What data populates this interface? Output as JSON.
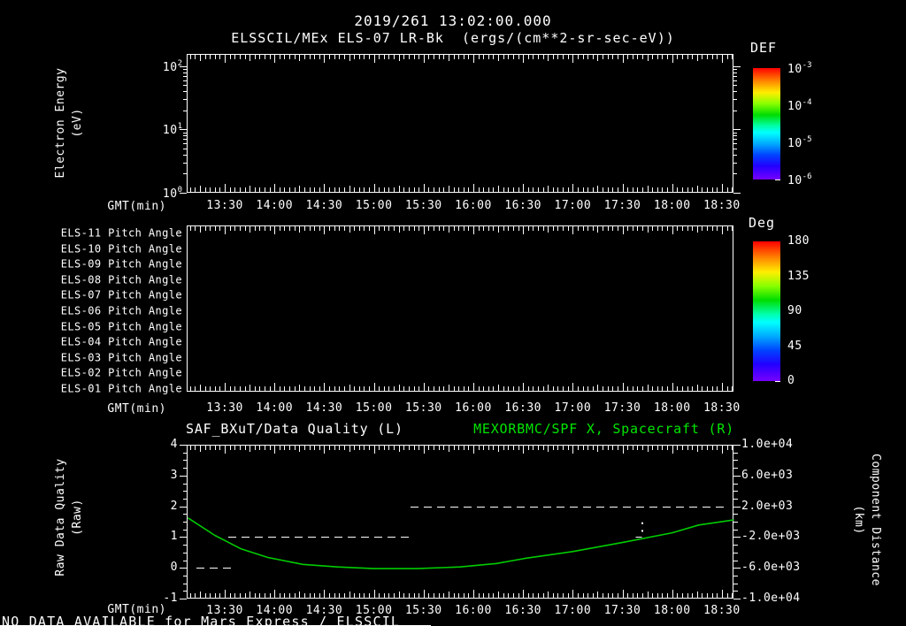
{
  "header": {
    "title": "2019/261 13:02:00.000",
    "subtitle": "ELSSCIL/MEx ELS-07 LR-Bk  (ergs/(cm**2-sr-sec-eV))"
  },
  "colors": {
    "background": "#000000",
    "foreground": "#ffffff",
    "accent_green": "#00e600",
    "curve_green": "#00cc00",
    "colorbar_stops": [
      "#ff0000 0%",
      "#ff8800 12%",
      "#ffee00 22%",
      "#88ff00 32%",
      "#00dd00 42%",
      "#00ffaa 52%",
      "#00ffff 58%",
      "#00aaff 68%",
      "#0044ff 78%",
      "#2200ff 88%",
      "#7700ff 100%"
    ]
  },
  "time_axis": {
    "label": "GMT(min)",
    "start_min": 787,
    "end_min": 1117,
    "minor_step_min": 3,
    "mid_step_min": 15,
    "major_ticks": [
      {
        "m": 810,
        "label": "13:30"
      },
      {
        "m": 840,
        "label": "14:00"
      },
      {
        "m": 870,
        "label": "14:30"
      },
      {
        "m": 900,
        "label": "15:00"
      },
      {
        "m": 930,
        "label": "15:30"
      },
      {
        "m": 960,
        "label": "16:00"
      },
      {
        "m": 990,
        "label": "16:30"
      },
      {
        "m": 1020,
        "label": "17:00"
      },
      {
        "m": 1050,
        "label": "17:30"
      },
      {
        "m": 1080,
        "label": "18:00"
      },
      {
        "m": 1110,
        "label": "18:30"
      }
    ]
  },
  "energy_panel": {
    "ylabel_line1": "Electron Energy",
    "ylabel_line2": "(eV)",
    "yticks": [
      {
        "base": "10",
        "exp": "2",
        "value": 100
      },
      {
        "base": "10",
        "exp": "1",
        "value": 10
      },
      {
        "base": "10",
        "exp": "0",
        "value": 1
      }
    ]
  },
  "def_colorbar": {
    "title": "DEF",
    "labels": [
      {
        "base": "10",
        "exp": "-3"
      },
      {
        "base": "10",
        "exp": "-4"
      },
      {
        "base": "10",
        "exp": "-5"
      },
      {
        "base": "10",
        "exp": "-6"
      }
    ]
  },
  "pitch_panel": {
    "rows": [
      "ELS-11 Pitch Angle",
      "ELS-10 Pitch Angle",
      "ELS-09 Pitch Angle",
      "ELS-08 Pitch Angle",
      "ELS-07 Pitch Angle",
      "ELS-06 Pitch Angle",
      "ELS-05 Pitch Angle",
      "ELS-04 Pitch Angle",
      "ELS-03 Pitch Angle",
      "ELS-02 Pitch Angle",
      "ELS-01 Pitch Angle"
    ]
  },
  "deg_colorbar": {
    "title": "Deg",
    "labels": [
      "180",
      "135",
      "90",
      "45",
      "0"
    ]
  },
  "quality_panel": {
    "title_left": "SAF_BXuT/Data Quality (L)",
    "title_right": "MEXORBMC/SPF X, Spacecraft (R)",
    "ylabel_left_line1": "Raw Data Quality",
    "ylabel_left_line2": "(Raw)",
    "ylabel_right_line1": "Component Distance",
    "ylabel_right_line2": "(km)",
    "yticks_left": [
      {
        "v": 4,
        "label": "4"
      },
      {
        "v": 3,
        "label": "3"
      },
      {
        "v": 2,
        "label": "2"
      },
      {
        "v": 1,
        "label": "1"
      },
      {
        "v": 0,
        "label": "0"
      },
      {
        "v": -1,
        "label": "-1"
      }
    ],
    "yticks_right": [
      {
        "v": 10000,
        "label": "1.0e+04"
      },
      {
        "v": 6000,
        "label": "6.0e+03"
      },
      {
        "v": 2000,
        "label": "2.0e+03"
      },
      {
        "v": -2000,
        "label": "-2.0e+03"
      },
      {
        "v": -6000,
        "label": "-6.0e+03"
      },
      {
        "v": -10000,
        "label": "-1.0e+04"
      }
    ]
  },
  "status_bar": {
    "text": "NO DATA AVAILABLE for Mars Express / ELSSCIL"
  },
  "chart_data": [
    {
      "type": "heatmap",
      "title": "ELSSCIL/MEx ELS-07 LR-Bk (ergs/(cm**2-sr-sec-eV))",
      "xlabel": "GMT(min)",
      "ylabel": "Electron Energy (eV)",
      "yscale": "log",
      "ylim": [
        1,
        155
      ],
      "x_tick_labels": [
        "13:30",
        "14:00",
        "14:30",
        "15:00",
        "15:30",
        "16:00",
        "16:30",
        "17:00",
        "17:30",
        "18:00",
        "18:30"
      ],
      "colorbar": {
        "title": "DEF",
        "scale": "log",
        "range": [
          1e-06,
          0.001
        ],
        "tick_labels": [
          "10^-3",
          "10^-4",
          "10^-5",
          "10^-6"
        ]
      },
      "values": [],
      "note": "empty panel - NO DATA AVAILABLE"
    },
    {
      "type": "heatmap",
      "title": "ELS Pitch Angle panels",
      "xlabel": "GMT(min)",
      "rows": [
        "ELS-11",
        "ELS-10",
        "ELS-09",
        "ELS-08",
        "ELS-07",
        "ELS-06",
        "ELS-05",
        "ELS-04",
        "ELS-03",
        "ELS-02",
        "ELS-01"
      ],
      "x_tick_labels": [
        "13:30",
        "14:00",
        "14:30",
        "15:00",
        "15:30",
        "16:00",
        "16:30",
        "17:00",
        "17:30",
        "18:00",
        "18:30"
      ],
      "colorbar": {
        "title": "Deg",
        "range": [
          0,
          180
        ],
        "ticks": [
          0,
          45,
          90,
          135,
          180
        ]
      },
      "values": [],
      "note": "empty panel - NO DATA AVAILABLE"
    },
    {
      "type": "line",
      "title_left": "SAF_BXuT/Data Quality (L)",
      "title_right": "MEXORBMC/SPF X, Spacecraft (R)",
      "xlabel": "GMT(min)",
      "x_range_minutes": [
        787,
        1117
      ],
      "x_tick_labels": [
        "13:30",
        "14:00",
        "14:30",
        "15:00",
        "15:30",
        "16:00",
        "16:30",
        "17:00",
        "17:30",
        "18:00",
        "18:30"
      ],
      "ylim_left": [
        -1,
        4
      ],
      "ylabel_left": "Raw Data Quality (Raw)",
      "ylim_right": [
        -10000,
        10000
      ],
      "ylabel_right": "Component Distance (km)",
      "series": [
        {
          "name": "SAF_BXuT/Data Quality (L)",
          "axis": "left",
          "style": "dashed",
          "color": "#ffffff",
          "segments": [
            {
              "value": 0,
              "m_start": 793,
              "m_end": 816
            },
            {
              "value": 1,
              "m_start": 812,
              "m_end": 923
            },
            {
              "value": 2,
              "m_start": 922,
              "m_end": 1111
            }
          ]
        },
        {
          "name": "MEXORBMC/SPF X, Spacecraft (R)",
          "axis": "right",
          "style": "solid",
          "color": "#00cc00",
          "points": [
            [
              788,
              450
            ],
            [
              804,
              -1780
            ],
            [
              820,
              -3550
            ],
            [
              836,
              -4660
            ],
            [
              857,
              -5550
            ],
            [
              878,
              -5890
            ],
            [
              900,
              -6100
            ],
            [
              926,
              -6100
            ],
            [
              952,
              -5890
            ],
            [
              974,
              -5440
            ],
            [
              991,
              -4780
            ],
            [
              1020,
              -3890
            ],
            [
              1051,
              -2670
            ],
            [
              1080,
              -1450
            ],
            [
              1096,
              -440
            ],
            [
              1117,
              220
            ]
          ]
        }
      ],
      "stray_marks": [
        {
          "m": 1062,
          "value": 1.45
        },
        {
          "m": 1062,
          "value": 1.2
        },
        {
          "m": 1060,
          "value": 1.02
        }
      ]
    }
  ]
}
